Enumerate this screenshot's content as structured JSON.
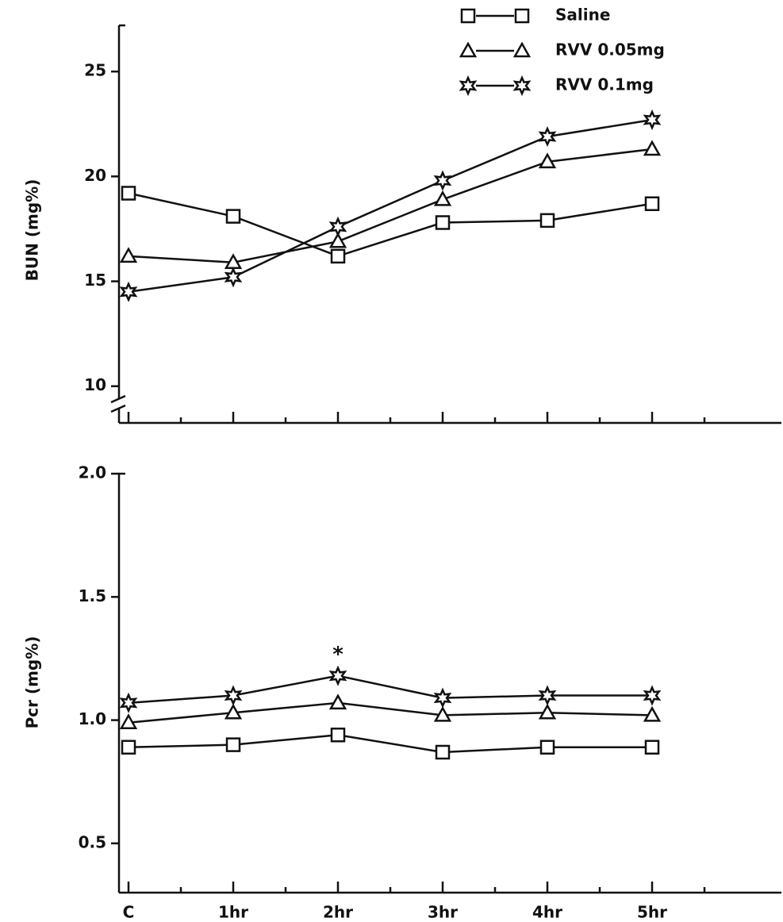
{
  "chart_data": [
    {
      "type": "line",
      "ylabel": "BUN (mg%)",
      "ylim": [
        8.25,
        27.2
      ],
      "yticks": [
        10,
        15,
        20,
        25
      ],
      "axis_break": true,
      "series": [
        {
          "name": "Saline",
          "color": "#111111",
          "marker": "square",
          "values": [
            19.2,
            18.1,
            16.2,
            17.8,
            17.9,
            18.7
          ]
        },
        {
          "name": "RVV 0.05mg",
          "color": "#111111",
          "marker": "triangle",
          "values": [
            16.2,
            15.9,
            16.9,
            18.9,
            20.7,
            21.3
          ]
        },
        {
          "name": "RVV 0.1mg",
          "color": "#111111",
          "marker": "star",
          "values": [
            14.5,
            15.2,
            17.6,
            19.8,
            21.9,
            22.7
          ]
        }
      ]
    },
    {
      "type": "line",
      "ylabel": "Pcr (mg%)",
      "ylim": [
        0.3,
        2.0
      ],
      "yticks": [
        {
          "value": 0.5,
          "label": "0.5"
        },
        {
          "value": 1,
          "label": "1.0"
        },
        {
          "value": 1.5,
          "label": "1.5"
        },
        {
          "value": 2,
          "label": "2.0"
        }
      ],
      "categories": [
        "C",
        "1hr",
        "2hr",
        "3hr",
        "4hr",
        "5hr"
      ],
      "annotations": [
        {
          "text": "*",
          "category": "2hr"
        }
      ],
      "series": [
        {
          "color": "#111111",
          "marker": "square",
          "values": [
            0.89,
            0.9,
            0.94,
            0.87,
            0.89,
            0.89
          ]
        },
        {
          "color": "#111111",
          "marker": "triangle",
          "values": [
            0.99,
            1.03,
            1.07,
            1.02,
            1.03,
            1.02
          ]
        },
        {
          "color": "#111111",
          "marker": "star",
          "values": [
            1.07,
            1.1,
            1.18,
            1.09,
            1.1,
            1.1
          ]
        }
      ]
    }
  ]
}
